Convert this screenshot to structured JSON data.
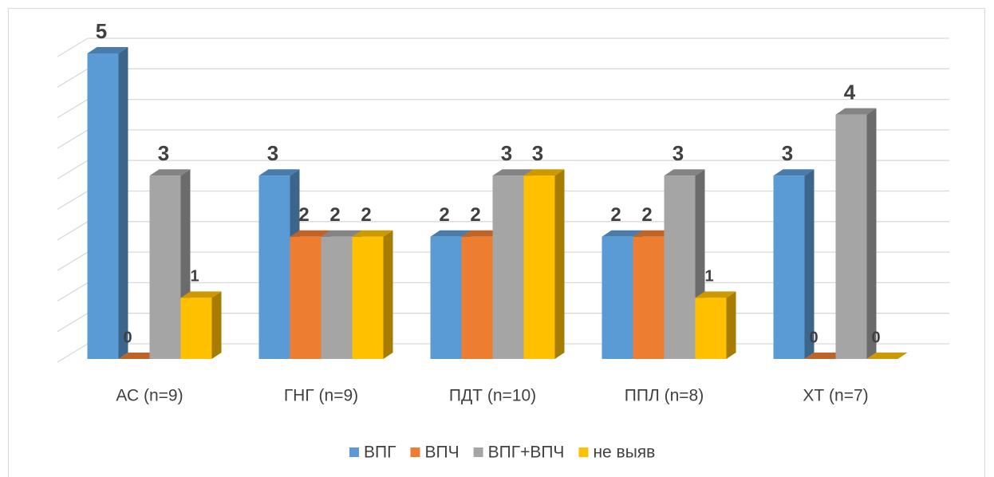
{
  "chart_data": {
    "type": "bar3d",
    "categories": [
      "АС (n=9)",
      "ГНГ (n=9)",
      "ПДТ (n=10)",
      "ППЛ (n=8)",
      "ХТ (n=7)"
    ],
    "series": [
      {
        "name": "ВПГ",
        "color": "#5b9bd5",
        "values": [
          5,
          3,
          2,
          2,
          3
        ]
      },
      {
        "name": "ВПЧ",
        "color": "#ed7d31",
        "values": [
          0,
          2,
          2,
          2,
          0
        ]
      },
      {
        "name": "ВПГ+ВПЧ",
        "color": "#a5a5a5",
        "values": [
          3,
          2,
          3,
          3,
          4
        ]
      },
      {
        "name": "не выяв",
        "color": "#ffc000",
        "values": [
          1,
          2,
          3,
          1,
          0
        ]
      }
    ],
    "ylim": [
      0,
      5
    ],
    "yticks": [
      0,
      0.5,
      1,
      1.5,
      2,
      2.5,
      3,
      3.5,
      4,
      4.5,
      5
    ],
    "grid": true,
    "legend": "bottom"
  }
}
